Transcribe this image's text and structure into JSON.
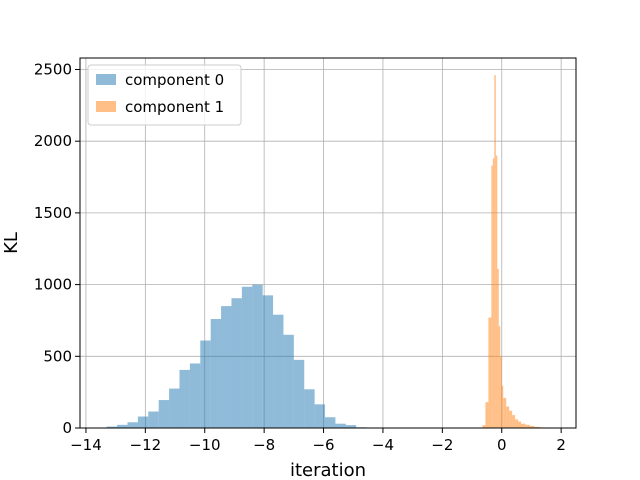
{
  "chart_data": {
    "type": "histogram",
    "xlabel": "iteration",
    "ylabel": "KL",
    "xlim": [
      -14.2,
      2.5
    ],
    "ylim": [
      0,
      2580
    ],
    "xticks": [
      -14,
      -12,
      -10,
      -8,
      -6,
      -4,
      -2,
      0,
      2
    ],
    "xtick_labels": [
      "−14",
      "−12",
      "−10",
      "−8",
      "−6",
      "−4",
      "−2",
      "0",
      "2"
    ],
    "yticks": [
      0,
      500,
      1000,
      1500,
      2000,
      2500
    ],
    "ytick_labels": [
      "0",
      "500",
      "1000",
      "1500",
      "2000",
      "2500"
    ],
    "grid": true,
    "legend_position": "upper-left",
    "series": [
      {
        "name": "component 0",
        "color": "#1f77b4",
        "alpha": 0.5,
        "bin_edges": [
          -13.3,
          -12.95,
          -12.6,
          -12.25,
          -11.9,
          -11.55,
          -11.2,
          -10.85,
          -10.5,
          -10.15,
          -9.8,
          -9.45,
          -9.1,
          -8.75,
          -8.4,
          -8.05,
          -7.7,
          -7.35,
          -7.0,
          -6.65,
          -6.3,
          -5.95,
          -5.6,
          -5.25,
          -4.9,
          -4.55
        ],
        "counts": [
          10,
          22,
          40,
          80,
          115,
          195,
          275,
          405,
          450,
          610,
          760,
          850,
          905,
          985,
          1000,
          925,
          790,
          650,
          475,
          270,
          165,
          75,
          30,
          20,
          5
        ]
      },
      {
        "name": "component 1",
        "color": "#ff7f0e",
        "alpha": 0.5,
        "bin_edges": [
          -0.65,
          -0.55,
          -0.45,
          -0.35,
          -0.3,
          -0.25,
          -0.2,
          -0.15,
          -0.1,
          -0.05,
          0.0,
          0.05,
          0.15,
          0.25,
          0.35,
          0.45,
          0.55,
          0.65,
          0.8,
          0.95,
          1.1,
          1.3,
          1.5
        ],
        "counts": [
          20,
          180,
          770,
          1830,
          1880,
          2460,
          1900,
          1110,
          710,
          500,
          295,
          210,
          150,
          120,
          90,
          60,
          45,
          30,
          22,
          14,
          8,
          4
        ]
      }
    ]
  }
}
